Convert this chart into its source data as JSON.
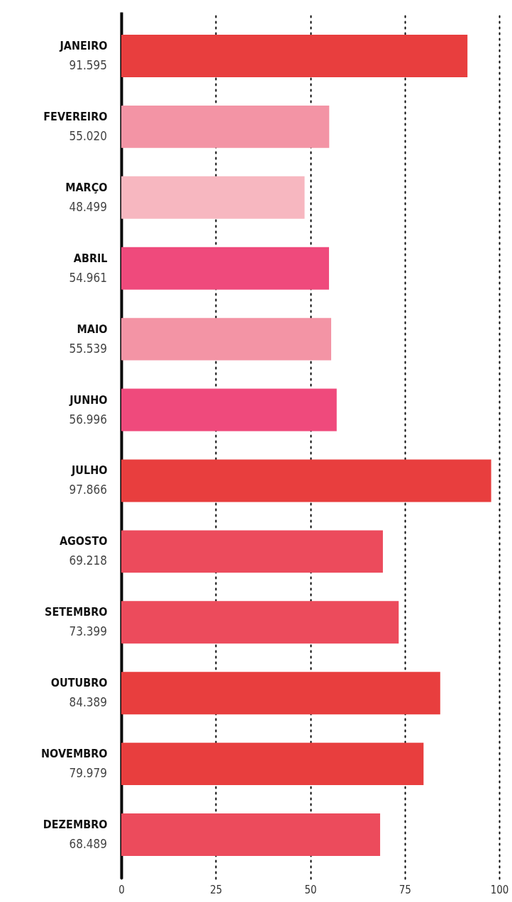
{
  "chart_data": {
    "type": "bar",
    "orientation": "horizontal",
    "categories": [
      "JANEIRO",
      "FEVEREIRO",
      "MARÇO",
      "ABRIL",
      "MAIO",
      "JUNHO",
      "JULHO",
      "AGOSTO",
      "SETEMBRO",
      "OUTUBRO",
      "NOVEMBRO",
      "DEZEMBRO"
    ],
    "values": [
      91.595,
      55.02,
      48.499,
      54.961,
      55.539,
      56.996,
      97.866,
      69.218,
      73.399,
      84.389,
      79.979,
      68.489
    ],
    "value_labels": [
      "91.595",
      "55.020",
      "48.499",
      "54.961",
      "55.539",
      "56.996",
      "97.866",
      "69.218",
      "73.399",
      "84.389",
      "79.979",
      "68.489"
    ],
    "colors": [
      "#e83e3e",
      "#f394a5",
      "#f7b7c0",
      "#ef4a7c",
      "#f394a5",
      "#ef4a7c",
      "#e83e3e",
      "#ec4b5c",
      "#ec4b5c",
      "#e83e3e",
      "#e83e3e",
      "#ec4b5c"
    ],
    "xlim": [
      0,
      100
    ],
    "xticks": [
      0,
      25,
      50,
      75,
      100
    ],
    "grid": "x"
  }
}
